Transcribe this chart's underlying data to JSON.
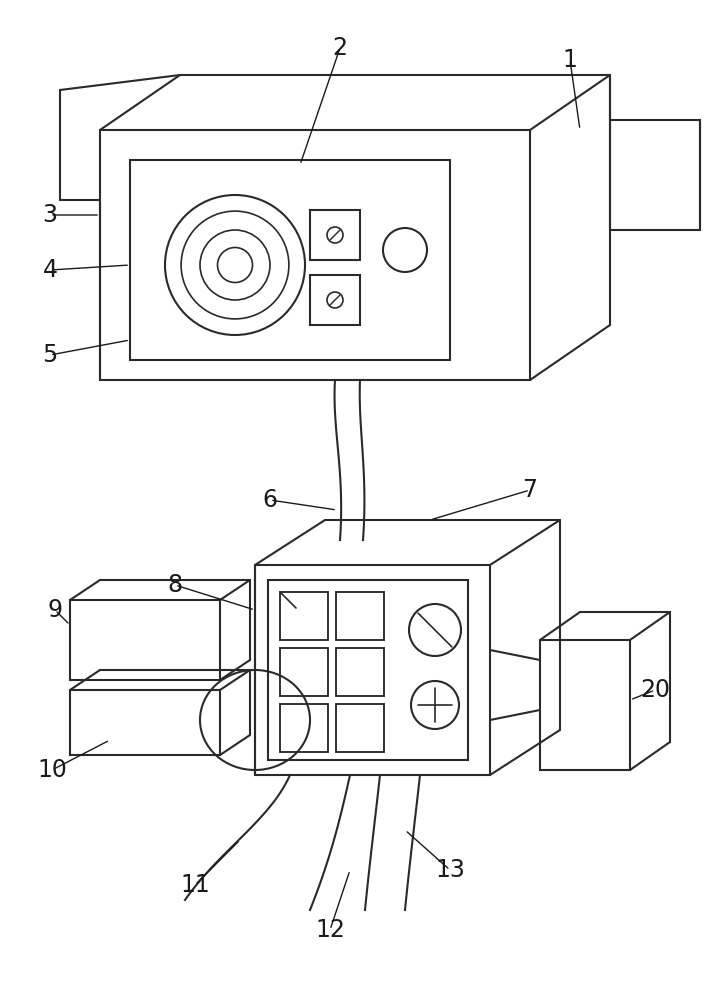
{
  "bg_color": "#ffffff",
  "line_color": "#2a2a2a",
  "line_width": 1.5,
  "label_fontsize": 17,
  "label_color": "#1a1a1a"
}
